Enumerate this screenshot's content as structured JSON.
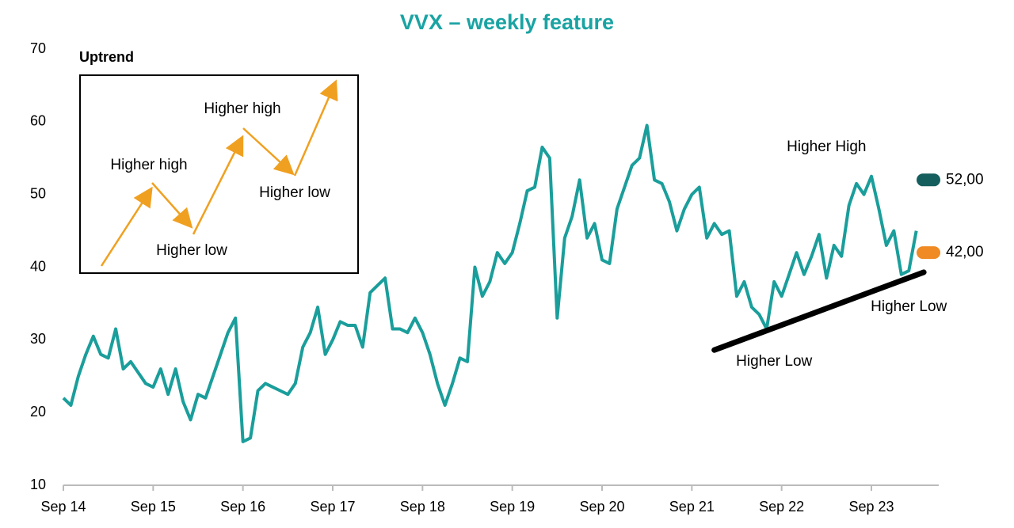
{
  "chart_data": {
    "type": "line",
    "title": "VVX – weekly feature",
    "x": [
      "2014-09",
      "2014-10",
      "2014-11",
      "2014-12",
      "2015-01",
      "2015-02",
      "2015-03",
      "2015-04",
      "2015-05",
      "2015-06",
      "2015-07",
      "2015-08",
      "2015-09",
      "2015-10",
      "2015-11",
      "2015-12",
      "2016-01",
      "2016-02",
      "2016-03",
      "2016-04",
      "2016-05",
      "2016-06",
      "2016-07",
      "2016-08",
      "2016-09",
      "2016-10",
      "2016-11",
      "2016-12",
      "2017-01",
      "2017-02",
      "2017-03",
      "2017-04",
      "2017-05",
      "2017-06",
      "2017-07",
      "2017-08",
      "2017-09",
      "2017-10",
      "2017-11",
      "2017-12",
      "2018-01",
      "2018-02",
      "2018-03",
      "2018-04",
      "2018-05",
      "2018-06",
      "2018-07",
      "2018-08",
      "2018-09",
      "2018-10",
      "2018-11",
      "2018-12",
      "2019-01",
      "2019-02",
      "2019-03",
      "2019-04",
      "2019-05",
      "2019-06",
      "2019-07",
      "2019-08",
      "2019-09",
      "2019-10",
      "2019-11",
      "2019-12",
      "2020-01",
      "2020-02",
      "2020-03",
      "2020-04",
      "2020-05",
      "2020-06",
      "2020-07",
      "2020-08",
      "2020-09",
      "2020-10",
      "2020-11",
      "2020-12",
      "2021-01",
      "2021-02",
      "2021-03",
      "2021-04",
      "2021-05",
      "2021-06",
      "2021-07",
      "2021-08",
      "2021-09",
      "2021-10",
      "2021-11",
      "2021-12",
      "2022-01",
      "2022-02",
      "2022-03",
      "2022-04",
      "2022-05",
      "2022-06",
      "2022-07",
      "2022-08",
      "2022-09",
      "2022-10",
      "2022-11",
      "2022-12",
      "2023-01",
      "2023-02",
      "2023-03",
      "2023-04",
      "2023-05",
      "2023-06",
      "2023-07",
      "2023-08",
      "2023-09",
      "2023-10",
      "2023-11",
      "2023-12",
      "2024-01",
      "2024-02",
      "2024-03"
    ],
    "series": [
      {
        "color": "#1a9e9b",
        "values": [
          22,
          21,
          25,
          28,
          30.5,
          28,
          27.5,
          31.5,
          26,
          27,
          25.5,
          24,
          23.5,
          26,
          22.5,
          26,
          21.5,
          19,
          22.5,
          22,
          25,
          28,
          31,
          33,
          16,
          16.5,
          23,
          24,
          23.5,
          23,
          22.5,
          24,
          29,
          31,
          34.5,
          28,
          30,
          32.5,
          32,
          32,
          29,
          36.5,
          37.5,
          38.5,
          31.5,
          31.5,
          31,
          33,
          31,
          28,
          24,
          21,
          24,
          27.5,
          27,
          40,
          36,
          38,
          42,
          40.5,
          42,
          46,
          50.5,
          51,
          56.5,
          55,
          33,
          44,
          47,
          52,
          44,
          46,
          41,
          40.5,
          48,
          51,
          54,
          55,
          59.5,
          52,
          51.5,
          49,
          45,
          48,
          50,
          51,
          44,
          46,
          44.5,
          45,
          36,
          38,
          34.5,
          33.5,
          31.5,
          38,
          36,
          39,
          42,
          39,
          41.5,
          44.5,
          38.5,
          43,
          41.5,
          48.5,
          51.5,
          50,
          52.5,
          48,
          43,
          45,
          39,
          39.5,
          45
        ]
      }
    ],
    "trendline": {
      "color": "#000000",
      "x": [
        "2021-12",
        "2024-04"
      ],
      "values": [
        28.6,
        39.3
      ]
    },
    "levels": [
      {
        "value": 52,
        "label": "52,00",
        "color": "#155e5e"
      },
      {
        "value": 42,
        "label": "42,00",
        "color": "#f08a24"
      }
    ],
    "annotations": [
      {
        "text": "Higher High",
        "x": "2023-03",
        "y": 56.5
      },
      {
        "text": "Higher Low",
        "x": "2024-02",
        "y": 34.5
      },
      {
        "text": "Higher Low",
        "x": "2022-08",
        "y": 27
      }
    ],
    "inset": {
      "title": "Uptrend",
      "labels": [
        "Higher high",
        "Higher low",
        "Higher high",
        "Higher low"
      ]
    },
    "xlim": [
      "2014-09",
      "2024-06"
    ],
    "xticks": [
      {
        "value": "2014-09",
        "label": "Sep 14"
      },
      {
        "value": "2015-09",
        "label": "Sep 15"
      },
      {
        "value": "2016-09",
        "label": "Sep 16"
      },
      {
        "value": "2017-09",
        "label": "Sep 17"
      },
      {
        "value": "2018-09",
        "label": "Sep 18"
      },
      {
        "value": "2019-09",
        "label": "Sep 19"
      },
      {
        "value": "2020-09",
        "label": "Sep 20"
      },
      {
        "value": "2021-09",
        "label": "Sep 21"
      },
      {
        "value": "2022-09",
        "label": "Sep 22"
      },
      {
        "value": "2023-09",
        "label": "Sep 23"
      }
    ],
    "ylim": [
      10,
      70
    ],
    "yticks": [
      10,
      20,
      30,
      40,
      50,
      60,
      70
    ]
  }
}
